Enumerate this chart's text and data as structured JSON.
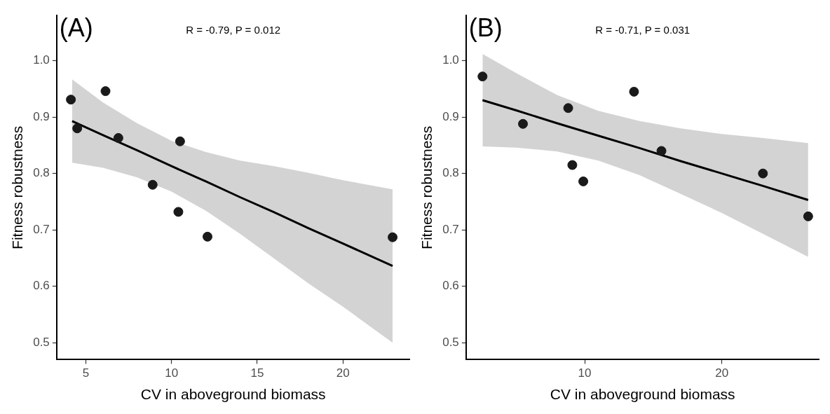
{
  "chart_data": [
    {
      "type": "scatter",
      "xlabel": "CV in aboveground biomass",
      "ylabel": "Fitness robustness",
      "annotations": [
        "(A)",
        "R = -0.79, P = 0.012"
      ],
      "xlim": [
        3.3,
        23.9
      ],
      "ylim": [
        0.47,
        1.08
      ],
      "xticks": [
        5,
        10,
        15,
        20
      ],
      "yticks": [
        0.5,
        0.6,
        0.7,
        0.8,
        0.9,
        {
          "value": 1,
          "label": "1.0"
        }
      ],
      "grid": false,
      "legend": false,
      "series": [
        {
          "type": "scatter",
          "marker": "circle",
          "color": "#1a1a1a",
          "x": [
            4.13,
            4.5,
            6.15,
            6.9,
            8.9,
            10.5,
            10.4,
            12.1,
            22.9
          ],
          "values": [
            0.931,
            0.88,
            0.946,
            0.863,
            0.78,
            0.857,
            0.732,
            0.688,
            0.687
          ]
        },
        {
          "type": "line",
          "color": "#000000",
          "x": [
            4.2,
            6,
            8,
            10,
            12,
            14,
            16,
            18,
            20,
            22.9
          ],
          "values": [
            0.893,
            0.868,
            0.841,
            0.813,
            0.786,
            0.758,
            0.731,
            0.703,
            0.676,
            0.636
          ],
          "lower": [
            0.819,
            0.81,
            0.793,
            0.768,
            0.734,
            0.693,
            0.649,
            0.605,
            0.564,
            0.5
          ],
          "upper": [
            0.967,
            0.926,
            0.889,
            0.858,
            0.838,
            0.823,
            0.813,
            0.801,
            0.788,
            0.772
          ]
        }
      ]
    },
    {
      "type": "scatter",
      "xlabel": "CV in aboveground biomass",
      "ylabel": "Fitness robustness",
      "annotations": [
        "(B)",
        "R = -0.71, P = 0.031"
      ],
      "xlim": [
        1.35,
        27.1
      ],
      "ylim": [
        0.47,
        1.08
      ],
      "xticks": [
        10,
        20
      ],
      "yticks": [
        0.5,
        0.6,
        0.7,
        0.8,
        0.9,
        {
          "value": 1,
          "label": "1.0"
        }
      ],
      "grid": false,
      "legend": false,
      "series": [
        {
          "type": "scatter",
          "marker": "circle",
          "color": "#1a1a1a",
          "x": [
            2.55,
            5.5,
            8.8,
            13.6,
            9.1,
            9.9,
            15.6,
            23.0,
            26.3
          ],
          "values": [
            0.972,
            0.888,
            0.916,
            0.945,
            0.815,
            0.786,
            0.84,
            0.8,
            0.724
          ]
        },
        {
          "type": "line",
          "color": "#000000",
          "x": [
            2.55,
            5,
            8,
            11,
            14,
            17,
            20,
            23,
            26.3
          ],
          "values": [
            0.93,
            0.912,
            0.889,
            0.867,
            0.845,
            0.822,
            0.8,
            0.778,
            0.753
          ],
          "lower": [
            0.848,
            0.846,
            0.839,
            0.823,
            0.797,
            0.764,
            0.73,
            0.693,
            0.652
          ],
          "upper": [
            1.012,
            0.978,
            0.939,
            0.911,
            0.893,
            0.88,
            0.87,
            0.863,
            0.854
          ]
        }
      ]
    }
  ]
}
